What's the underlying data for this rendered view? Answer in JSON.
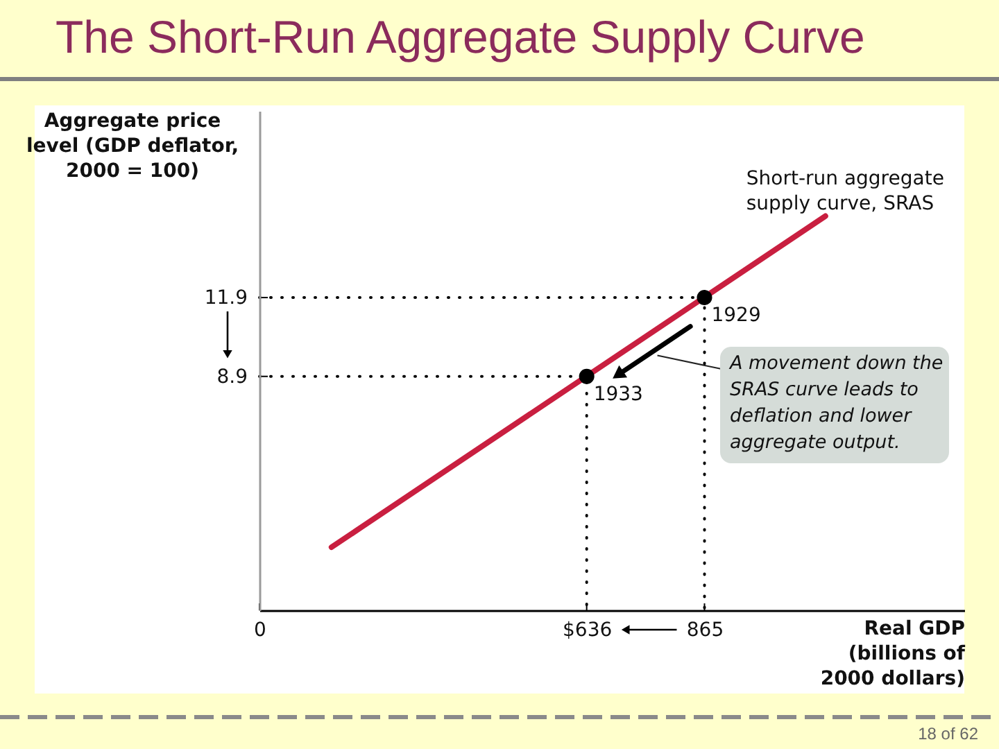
{
  "chart_data": {
    "type": "line",
    "title": "The Short-Run Aggregate Supply Curve",
    "xlabel": "Real GDP (billions of 2000 dollars)",
    "ylabel": "Aggregate price level (GDP deflator, 2000 = 100)",
    "xlim": [
      0,
      1370
    ],
    "ylim": [
      0,
      19
    ],
    "xticks": [
      0,
      {
        "value": 636,
        "label": "$636"
      },
      865
    ],
    "yticks": [
      8.9,
      11.9
    ],
    "grid": false,
    "legend": false,
    "series": [
      {
        "name": "Short-run aggregate supply curve, SRAS",
        "color": "#c91f40",
        "x": [
          140,
          1100
        ],
        "values": [
          2.4,
          15.0
        ]
      },
      {
        "line_style": "dotted",
        "color": "#000000",
        "x": [
          0,
          636,
          636
        ],
        "values": [
          8.9,
          8.9,
          0
        ]
      },
      {
        "line_style": "dotted",
        "color": "#000000",
        "x": [
          0,
          865,
          865
        ],
        "values": [
          11.9,
          11.9,
          0
        ]
      },
      {
        "type": "scatter",
        "marker": "circle",
        "color": "#000000",
        "x": [
          636,
          865
        ],
        "values": [
          8.9,
          11.9
        ]
      }
    ],
    "annotations": [
      {
        "text": "1933",
        "x": 636,
        "y": 8.9
      },
      {
        "text": "1929",
        "x": 865,
        "y": 11.9
      },
      "A movement down the SRAS curve leads to deflation and lower aggregate output.",
      "18 of 62"
    ]
  }
}
